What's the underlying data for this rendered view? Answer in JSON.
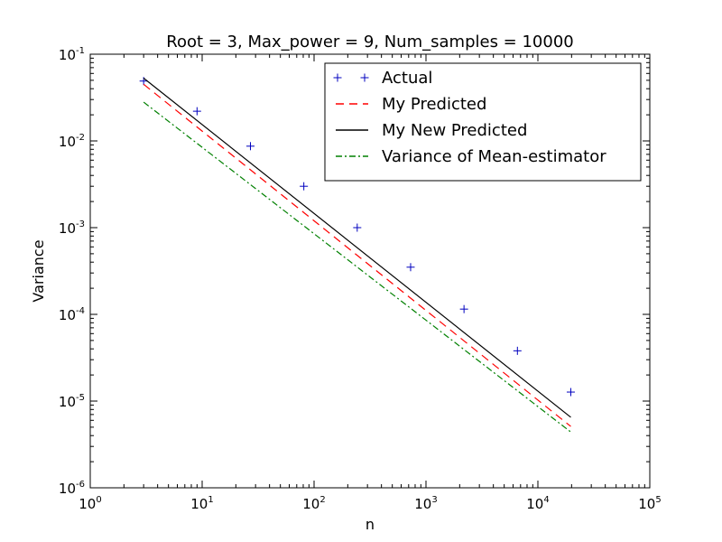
{
  "chart_data": {
    "type": "line",
    "title": "Root = 3, Max_power = 9, Num_samples = 10000",
    "xlabel": "n",
    "ylabel": "Variance",
    "x_scale": "log",
    "y_scale": "log",
    "xlim": [
      1,
      100000
    ],
    "ylim": [
      1e-06,
      0.1
    ],
    "x_ticks": [
      {
        "base": "10",
        "exp": "0"
      },
      {
        "base": "10",
        "exp": "1"
      },
      {
        "base": "10",
        "exp": "2"
      },
      {
        "base": "10",
        "exp": "3"
      },
      {
        "base": "10",
        "exp": "4"
      },
      {
        "base": "10",
        "exp": "5"
      }
    ],
    "y_ticks": [
      {
        "base": "10",
        "exp": "-6"
      },
      {
        "base": "10",
        "exp": "-5"
      },
      {
        "base": "10",
        "exp": "-4"
      },
      {
        "base": "10",
        "exp": "-3"
      },
      {
        "base": "10",
        "exp": "-2"
      },
      {
        "base": "10",
        "exp": "-1"
      }
    ],
    "grid": false,
    "legend_position": "top-right",
    "series": [
      {
        "name": "Actual",
        "style": "markers-plus",
        "color": "#0000bf",
        "x": [
          3,
          9,
          27,
          81,
          243,
          729,
          2187,
          6561,
          19683
        ],
        "y": [
          0.049,
          0.022,
          0.0087,
          0.003,
          0.001,
          0.00035,
          0.000115,
          3.8e-05,
          1.27e-05
        ]
      },
      {
        "name": "My Predicted",
        "style": "dashed",
        "color": "#ff0000",
        "x": [
          3,
          19683
        ],
        "y": [
          0.045,
          5.1e-06
        ]
      },
      {
        "name": "My New Predicted",
        "style": "solid",
        "color": "#000000",
        "x": [
          3,
          19683
        ],
        "y": [
          0.053,
          6.5e-06
        ]
      },
      {
        "name": "Variance of Mean-estimator",
        "style": "dashdot",
        "color": "#008000",
        "x": [
          3,
          19683
        ],
        "y": [
          0.028,
          4.4e-06
        ]
      }
    ]
  }
}
